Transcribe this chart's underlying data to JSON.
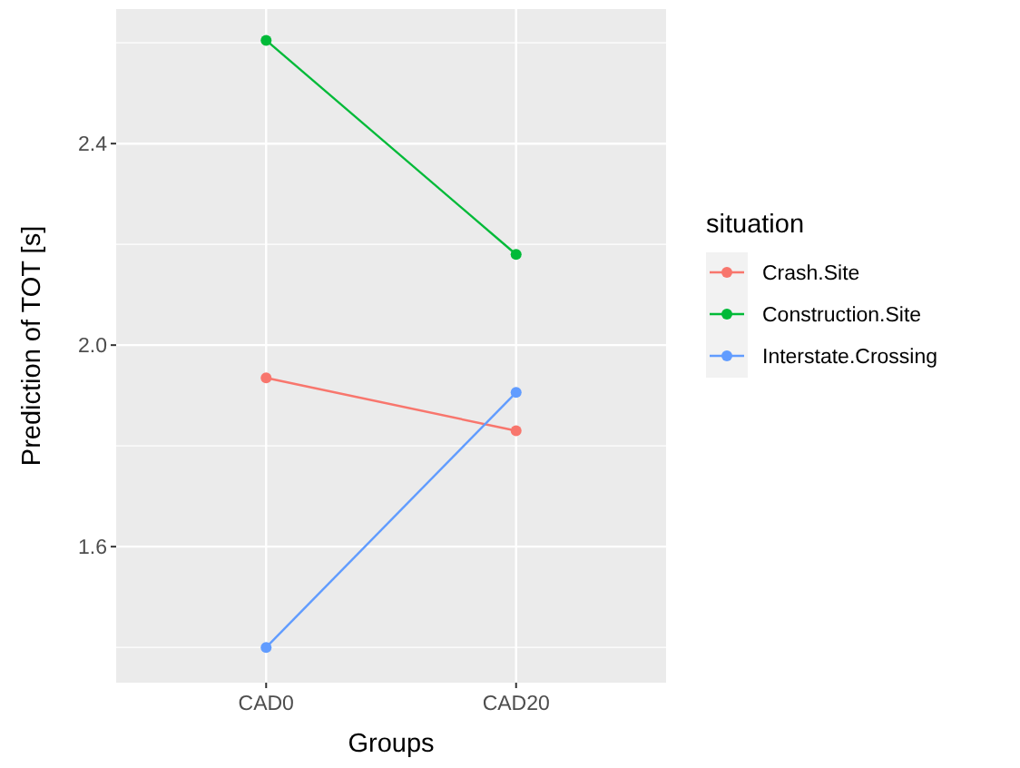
{
  "chart_data": {
    "type": "line",
    "xlabel": "Groups",
    "ylabel": "Prediction of TOT [s]",
    "legend_title": "situation",
    "categories": [
      "CAD0",
      "CAD20"
    ],
    "series": [
      {
        "name": "Crash.Site",
        "color": "#f8766d",
        "values": [
          1.935,
          1.83
        ]
      },
      {
        "name": "Construction.Site",
        "color": "#00ba38",
        "values": [
          2.605,
          2.18
        ]
      },
      {
        "name": "Interstate.Crossing",
        "color": "#619cff",
        "values": [
          1.4,
          1.906
        ]
      }
    ],
    "ylim": [
      1.33,
      2.667
    ],
    "yticks": [
      {
        "value": 1.4,
        "label": null
      },
      1.6,
      {
        "value": 1.8,
        "label": null
      },
      {
        "value": 2,
        "label": "2.0"
      },
      {
        "value": 2.2,
        "label": null
      },
      2.4,
      {
        "value": 2.6,
        "label": null
      }
    ],
    "grid": true,
    "legend": "right",
    "marker": "circle",
    "line_style": "solid"
  }
}
